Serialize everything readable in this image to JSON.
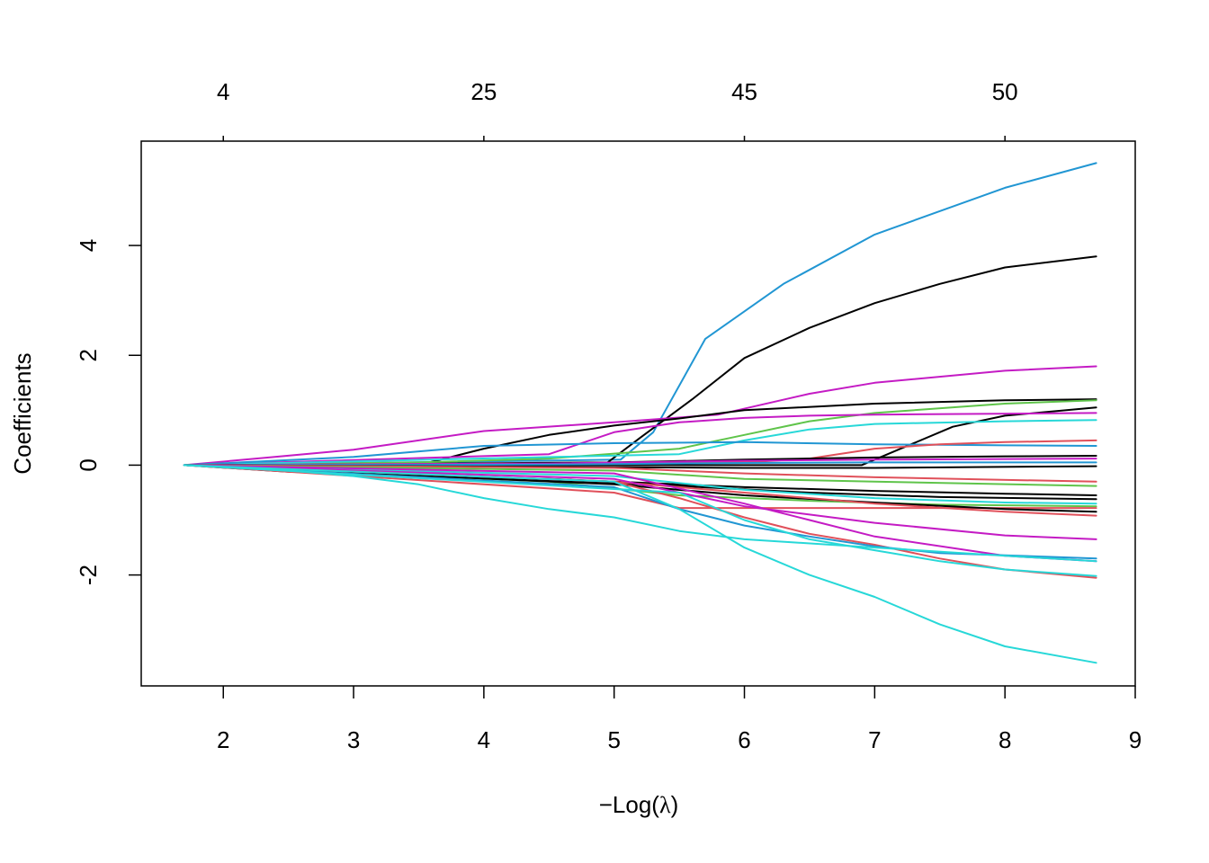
{
  "chart_data": {
    "type": "line",
    "title": "",
    "xlabel_prefix": "−",
    "xlabel_main": "Log(",
    "xlabel_symbol": "λ",
    "xlabel_close": ")",
    "ylabel": "Coefficients",
    "xlim": [
      1.37,
      9.0
    ],
    "ylim": [
      -4.02,
      5.9
    ],
    "x_ticks": [
      2,
      3,
      4,
      5,
      6,
      7,
      8,
      9
    ],
    "y_ticks": [
      -2,
      0,
      2,
      4
    ],
    "y_tick_labels": [
      "-2",
      "0",
      "2",
      "4"
    ],
    "top_ticks": [
      {
        "x": 2,
        "label": "4"
      },
      {
        "x": 4,
        "label": "25"
      },
      {
        "x": 6,
        "label": "45"
      },
      {
        "x": 8,
        "label": "50"
      }
    ],
    "grid": false,
    "legend": "none",
    "series": [
      {
        "color": "#2196d3",
        "points": [
          [
            1.7,
            0
          ],
          [
            5.05,
            0.1
          ],
          [
            5.3,
            0.6
          ],
          [
            5.7,
            2.3
          ],
          [
            6.3,
            3.3
          ],
          [
            7.0,
            4.2
          ],
          [
            8.0,
            5.05
          ],
          [
            8.7,
            5.5
          ]
        ]
      },
      {
        "color": "#000000",
        "points": [
          [
            1.7,
            0
          ],
          [
            4.95,
            0.05
          ],
          [
            5.2,
            0.5
          ],
          [
            5.6,
            1.2
          ],
          [
            6.0,
            1.95
          ],
          [
            6.5,
            2.5
          ],
          [
            7.0,
            2.95
          ],
          [
            7.5,
            3.3
          ],
          [
            8.0,
            3.6
          ],
          [
            8.7,
            3.8
          ]
        ]
      },
      {
        "color": "#c41bc4",
        "points": [
          [
            1.7,
            0
          ],
          [
            3.0,
            0.28
          ],
          [
            4.0,
            0.62
          ],
          [
            5.0,
            0.78
          ],
          [
            5.8,
            0.92
          ],
          [
            6.5,
            1.3
          ],
          [
            7.0,
            1.5
          ],
          [
            8.0,
            1.72
          ],
          [
            8.7,
            1.8
          ]
        ]
      },
      {
        "color": "#000000",
        "points": [
          [
            1.7,
            0
          ],
          [
            3.5,
            0
          ],
          [
            4.0,
            0.3
          ],
          [
            4.5,
            0.55
          ],
          [
            5.0,
            0.72
          ],
          [
            5.5,
            0.85
          ],
          [
            6.0,
            1.0
          ],
          [
            7.0,
            1.12
          ],
          [
            8.0,
            1.18
          ],
          [
            8.7,
            1.2
          ]
        ]
      },
      {
        "color": "#5fc44a",
        "points": [
          [
            1.7,
            0
          ],
          [
            3.5,
            0.05
          ],
          [
            4.5,
            0.12
          ],
          [
            5.5,
            0.3
          ],
          [
            6.0,
            0.55
          ],
          [
            6.5,
            0.8
          ],
          [
            7.0,
            0.95
          ],
          [
            8.0,
            1.12
          ],
          [
            8.7,
            1.18
          ]
        ]
      },
      {
        "color": "#000000",
        "points": [
          [
            1.7,
            0
          ],
          [
            6.5,
            0
          ],
          [
            6.9,
            0
          ],
          [
            7.2,
            0.3
          ],
          [
            7.6,
            0.7
          ],
          [
            8.0,
            0.9
          ],
          [
            8.7,
            1.05
          ]
        ]
      },
      {
        "color": "#c41bc4",
        "points": [
          [
            1.7,
            0
          ],
          [
            4.5,
            0.2
          ],
          [
            5.0,
            0.6
          ],
          [
            5.5,
            0.78
          ],
          [
            6.0,
            0.86
          ],
          [
            6.5,
            0.9
          ],
          [
            7.0,
            0.92
          ],
          [
            8.7,
            0.95
          ]
        ]
      },
      {
        "color": "#27d8d8",
        "points": [
          [
            1.7,
            0
          ],
          [
            5.5,
            0.2
          ],
          [
            6.0,
            0.45
          ],
          [
            6.5,
            0.65
          ],
          [
            7.0,
            0.75
          ],
          [
            8.0,
            0.8
          ],
          [
            8.7,
            0.82
          ]
        ]
      },
      {
        "color": "#2196d3",
        "points": [
          [
            1.7,
            0
          ],
          [
            3.0,
            0.15
          ],
          [
            4.0,
            0.35
          ],
          [
            5.0,
            0.4
          ],
          [
            6.0,
            0.42
          ],
          [
            7.0,
            0.38
          ],
          [
            8.0,
            0.36
          ],
          [
            8.7,
            0.35
          ]
        ]
      },
      {
        "color": "#e0505a",
        "points": [
          [
            1.7,
            0
          ],
          [
            6.0,
            0.05
          ],
          [
            6.5,
            0.12
          ],
          [
            7.0,
            0.3
          ],
          [
            7.5,
            0.38
          ],
          [
            8.0,
            0.42
          ],
          [
            8.7,
            0.45
          ]
        ]
      },
      {
        "color": "#000000",
        "points": [
          [
            1.7,
            0
          ],
          [
            4.0,
            0.02
          ],
          [
            5.0,
            0.05
          ],
          [
            6.0,
            0.1
          ],
          [
            7.0,
            0.14
          ],
          [
            8.0,
            0.16
          ],
          [
            8.7,
            0.17
          ]
        ]
      },
      {
        "color": "#c41bc4",
        "points": [
          [
            1.7,
            0
          ],
          [
            4.5,
            0.03
          ],
          [
            6.0,
            0.08
          ],
          [
            7.0,
            0.1
          ],
          [
            8.7,
            0.12
          ]
        ]
      },
      {
        "color": "#2196d3",
        "points": [
          [
            1.7,
            0
          ],
          [
            4.5,
            0.01
          ],
          [
            6.0,
            0.04
          ],
          [
            7.0,
            0.05
          ],
          [
            8.7,
            0.05
          ]
        ]
      },
      {
        "color": "#000000",
        "points": [
          [
            1.7,
            0
          ],
          [
            6.0,
            -0.05
          ],
          [
            7.0,
            -0.05
          ],
          [
            8.7,
            -0.02
          ]
        ]
      },
      {
        "color": "#e0505a",
        "points": [
          [
            1.7,
            0
          ],
          [
            5.0,
            -0.05
          ],
          [
            6.0,
            -0.15
          ],
          [
            7.0,
            -0.22
          ],
          [
            8.7,
            -0.3
          ]
        ]
      },
      {
        "color": "#5fc44a",
        "points": [
          [
            1.7,
            0
          ],
          [
            5.0,
            -0.1
          ],
          [
            6.0,
            -0.25
          ],
          [
            7.0,
            -0.3
          ],
          [
            8.7,
            -0.38
          ]
        ]
      },
      {
        "color": "#000000",
        "points": [
          [
            1.7,
            0
          ],
          [
            2.5,
            -0.1
          ],
          [
            3.5,
            -0.2
          ],
          [
            4.5,
            -0.25
          ],
          [
            5.5,
            -0.35
          ],
          [
            6.0,
            -0.4
          ],
          [
            7.0,
            -0.47
          ],
          [
            8.0,
            -0.52
          ],
          [
            8.7,
            -0.55
          ]
        ]
      },
      {
        "color": "#000000",
        "points": [
          [
            1.7,
            0
          ],
          [
            2.5,
            -0.12
          ],
          [
            3.5,
            -0.2
          ],
          [
            4.5,
            -0.28
          ],
          [
            5.5,
            -0.38
          ],
          [
            6.5,
            -0.5
          ],
          [
            7.5,
            -0.58
          ],
          [
            8.7,
            -0.62
          ]
        ]
      },
      {
        "color": "#27d8d8",
        "points": [
          [
            1.7,
            0
          ],
          [
            5.0,
            -0.2
          ],
          [
            6.0,
            -0.45
          ],
          [
            7.0,
            -0.6
          ],
          [
            8.0,
            -0.68
          ],
          [
            8.7,
            -0.7
          ]
        ]
      },
      {
        "color": "#5fc44a",
        "points": [
          [
            1.7,
            0
          ],
          [
            4.5,
            -0.3
          ],
          [
            5.5,
            -0.55
          ],
          [
            6.5,
            -0.65
          ],
          [
            7.5,
            -0.72
          ],
          [
            8.7,
            -0.75
          ]
        ]
      },
      {
        "color": "#e0505a",
        "points": [
          [
            1.7,
            0
          ],
          [
            5.0,
            -0.5
          ],
          [
            5.5,
            -0.78
          ],
          [
            8.7,
            -0.78
          ]
        ]
      },
      {
        "color": "#000000",
        "points": [
          [
            1.7,
            0
          ],
          [
            5.0,
            -0.35
          ],
          [
            6.0,
            -0.55
          ],
          [
            7.0,
            -0.68
          ],
          [
            8.0,
            -0.8
          ],
          [
            8.7,
            -0.85
          ]
        ]
      },
      {
        "color": "#e0505a",
        "points": [
          [
            1.7,
            0
          ],
          [
            5.0,
            -0.3
          ],
          [
            6.0,
            -0.5
          ],
          [
            7.0,
            -0.7
          ],
          [
            8.0,
            -0.85
          ],
          [
            8.7,
            -0.92
          ]
        ]
      },
      {
        "color": "#c41bc4",
        "points": [
          [
            1.7,
            0
          ],
          [
            5.0,
            -0.25
          ],
          [
            5.5,
            -0.5
          ],
          [
            6.0,
            -0.75
          ],
          [
            6.5,
            -0.9
          ],
          [
            7.0,
            -1.05
          ],
          [
            8.0,
            -1.28
          ],
          [
            8.7,
            -1.35
          ]
        ]
      },
      {
        "color": "#e0505a",
        "points": [
          [
            1.7,
            0
          ],
          [
            5.0,
            -0.3
          ],
          [
            5.5,
            -0.6
          ],
          [
            6.0,
            -0.95
          ],
          [
            6.5,
            -1.25
          ],
          [
            7.0,
            -1.45
          ],
          [
            7.5,
            -1.7
          ],
          [
            8.0,
            -1.9
          ],
          [
            8.7,
            -2.05
          ]
        ]
      },
      {
        "color": "#c41bc4",
        "points": [
          [
            1.7,
            0
          ],
          [
            5.0,
            -0.15
          ],
          [
            6.0,
            -0.7
          ],
          [
            6.5,
            -1.0
          ],
          [
            7.0,
            -1.3
          ],
          [
            8.0,
            -1.65
          ],
          [
            8.7,
            -1.75
          ]
        ]
      },
      {
        "color": "#2196d3",
        "points": [
          [
            1.7,
            0
          ],
          [
            5.0,
            -0.4
          ],
          [
            5.5,
            -0.8
          ],
          [
            6.0,
            -1.1
          ],
          [
            6.5,
            -1.3
          ],
          [
            7.0,
            -1.48
          ],
          [
            7.5,
            -1.6
          ],
          [
            8.7,
            -1.7
          ]
        ]
      },
      {
        "color": "#27d8d8",
        "points": [
          [
            1.7,
            0
          ],
          [
            5.5,
            -0.5
          ],
          [
            6.0,
            -1.0
          ],
          [
            6.5,
            -1.35
          ],
          [
            7.0,
            -1.55
          ],
          [
            7.5,
            -1.75
          ],
          [
            8.0,
            -1.9
          ],
          [
            8.7,
            -2.02
          ]
        ]
      },
      {
        "color": "#27d8d8",
        "points": [
          [
            1.7,
            0
          ],
          [
            2.5,
            -0.1
          ],
          [
            3.0,
            -0.2
          ],
          [
            3.5,
            -0.35
          ],
          [
            4.0,
            -0.6
          ],
          [
            4.5,
            -0.8
          ],
          [
            5.0,
            -0.95
          ],
          [
            5.5,
            -1.2
          ],
          [
            6.0,
            -1.35
          ],
          [
            7.0,
            -1.5
          ],
          [
            8.0,
            -1.65
          ],
          [
            8.7,
            -1.75
          ]
        ]
      },
      {
        "color": "#27d8d8",
        "points": [
          [
            1.7,
            0
          ],
          [
            5.0,
            -0.3
          ],
          [
            5.5,
            -0.8
          ],
          [
            6.0,
            -1.5
          ],
          [
            6.5,
            -2.0
          ],
          [
            7.0,
            -2.4
          ],
          [
            7.5,
            -2.9
          ],
          [
            8.0,
            -3.3
          ],
          [
            8.7,
            -3.6
          ]
        ]
      }
    ]
  }
}
